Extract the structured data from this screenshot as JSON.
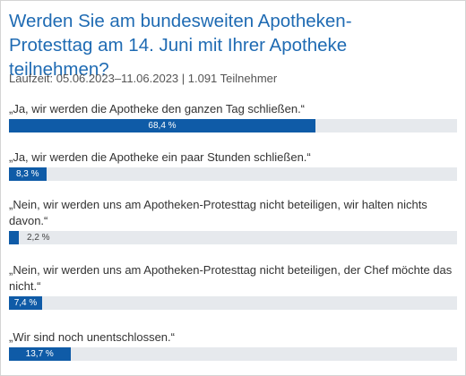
{
  "poll": {
    "question": "Werden Sie am bundesweiten Apotheken-Protesttag am 14. Juni mit Ihrer Apotheke teilnehmen?",
    "meta": "Laufzeit: 05.06.2023–11.06.2023 | 1.091 Teilnehmer",
    "bar_color": "#0f5ba7",
    "track_color": "#e6e9ed",
    "options": [
      {
        "label": "„Ja, wir werden die Apotheke den ganzen Tag schließen.“",
        "value": 68.4,
        "pct_text": "68,4 %"
      },
      {
        "label": "„Ja, wir werden die Apotheke ein paar Stunden schließen.“",
        "value": 8.3,
        "pct_text": "8,3 %"
      },
      {
        "label": "„Nein, wir werden uns am Apotheken-Protesttag nicht beteiligen, wir halten nichts davon.“",
        "value": 2.2,
        "pct_text": "2,2 %"
      },
      {
        "label": "„Nein, wir werden uns am Apotheken-Protesttag nicht beteiligen, der Chef möchte das nicht.“",
        "value": 7.4,
        "pct_text": "7,4 %"
      },
      {
        "label": "„Wir sind noch unentschlossen.“",
        "value": 13.7,
        "pct_text": "13,7 %"
      }
    ]
  }
}
